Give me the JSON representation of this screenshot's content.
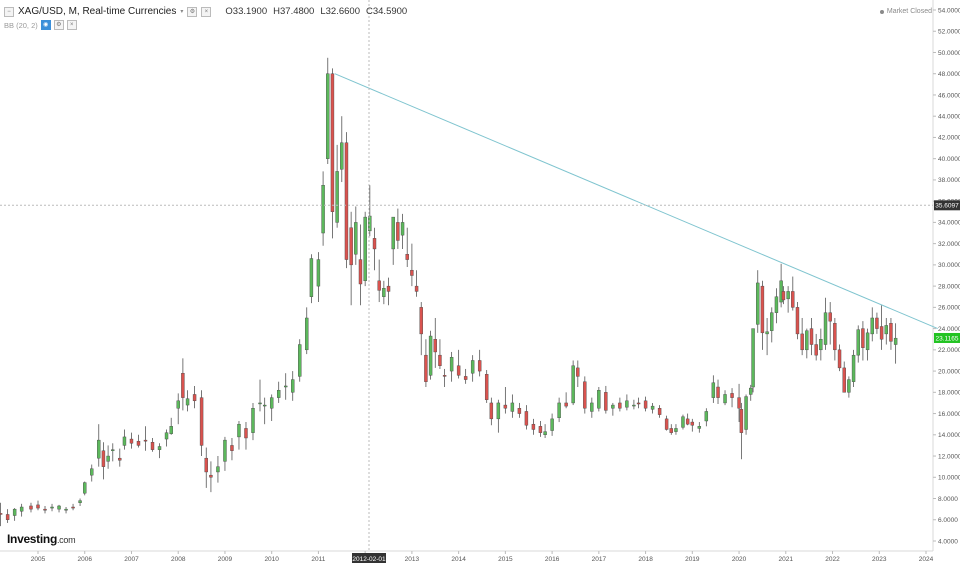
{
  "header": {
    "symbol": "XAG/USD, M, Real-time Currencies",
    "open_label": "O",
    "open": "33.1900",
    "high_label": "H",
    "high": "37.4800",
    "low_label": "L",
    "low": "32.6600",
    "close_label": "C",
    "close": "34.5900",
    "indicator": "BB (20, 2)",
    "market_status": "Market Closed"
  },
  "crosshair": {
    "x_label": "2012-02-01",
    "y_label": "35.6097"
  },
  "last_price": "23.1165",
  "logo": {
    "name": "Investing",
    "suffix": ".com"
  },
  "colors": {
    "up": "#5cb85c",
    "down": "#d9534f",
    "trendline": "#7fc4cf",
    "last_price_bg": "#22c322",
    "crosshair_bg": "#333333"
  },
  "chart_data": {
    "type": "candlestick",
    "xlabel": "",
    "ylabel": "",
    "x_ticks": [
      "2005",
      "2006",
      "2007",
      "2008",
      "2009",
      "2010",
      "2011",
      "2012",
      "2013",
      "2014",
      "2015",
      "2016",
      "2017",
      "2018",
      "2019",
      "2020",
      "2021",
      "2022",
      "2023",
      "2024"
    ],
    "y_ticks": [
      "4.0000",
      "6.0000",
      "8.0000",
      "10.0000",
      "12.0000",
      "14.0000",
      "16.0000",
      "18.0000",
      "20.0000",
      "22.0000",
      "24.0000",
      "26.0000",
      "28.0000",
      "30.0000",
      "32.0000",
      "34.0000",
      "36.0000",
      "38.0000",
      "40.0000",
      "42.0000",
      "44.0000",
      "46.0000",
      "48.0000",
      "50.0000",
      "52.0000",
      "54.0000"
    ],
    "ylim": [
      3,
      54.5
    ],
    "xlim": [
      2004.1,
      2024.25
    ],
    "candles": [
      [
        2004.1,
        6.4,
        8.0,
        6.0,
        8.0
      ],
      [
        2004.2,
        6.6,
        7.6,
        5.4,
        6.5
      ],
      [
        2004.35,
        6.5,
        7.0,
        5.7,
        6.0
      ],
      [
        2004.5,
        6.4,
        7.1,
        5.9,
        7.0
      ],
      [
        2004.65,
        6.8,
        7.5,
        6.3,
        7.2
      ],
      [
        2004.85,
        7.3,
        7.6,
        6.7,
        7.0
      ],
      [
        2005.0,
        7.4,
        7.8,
        6.9,
        7.1
      ],
      [
        2005.15,
        7.0,
        7.3,
        6.6,
        6.9
      ],
      [
        2005.3,
        7.1,
        7.5,
        6.8,
        7.2
      ],
      [
        2005.45,
        7.0,
        7.4,
        6.7,
        7.3
      ],
      [
        2005.6,
        6.9,
        7.2,
        6.6,
        7.0
      ],
      [
        2005.75,
        7.2,
        7.5,
        6.9,
        7.1
      ],
      [
        2005.9,
        7.6,
        8.0,
        7.3,
        7.8
      ],
      [
        2006.0,
        8.5,
        9.6,
        8.3,
        9.5
      ],
      [
        2006.15,
        10.2,
        11.2,
        9.6,
        10.8
      ],
      [
        2006.3,
        11.8,
        15.0,
        11.0,
        13.5
      ],
      [
        2006.4,
        12.5,
        13.3,
        9.8,
        11.0
      ],
      [
        2006.5,
        11.5,
        13.0,
        10.8,
        12.0
      ],
      [
        2006.6,
        12.5,
        13.2,
        11.5,
        12.6
      ],
      [
        2006.75,
        11.8,
        12.7,
        11.0,
        11.6
      ],
      [
        2006.85,
        13.0,
        14.5,
        12.6,
        13.8
      ],
      [
        2007.0,
        13.6,
        14.2,
        12.7,
        13.2
      ],
      [
        2007.15,
        13.4,
        14.0,
        12.8,
        13.0
      ],
      [
        2007.3,
        13.5,
        14.8,
        12.5,
        13.4
      ],
      [
        2007.45,
        13.3,
        13.7,
        12.4,
        12.6
      ],
      [
        2007.6,
        12.6,
        13.2,
        11.8,
        12.9
      ],
      [
        2007.75,
        13.6,
        14.5,
        12.9,
        14.2
      ],
      [
        2007.85,
        14.1,
        15.6,
        14.0,
        14.8
      ],
      [
        2008.0,
        16.5,
        17.9,
        15.0,
        17.2
      ],
      [
        2008.1,
        19.8,
        21.2,
        16.3,
        17.5
      ],
      [
        2008.2,
        16.8,
        18.2,
        16.2,
        17.4
      ],
      [
        2008.35,
        17.8,
        18.6,
        16.5,
        17.2
      ],
      [
        2008.5,
        17.5,
        18.2,
        12.0,
        13.0
      ],
      [
        2008.6,
        11.8,
        12.8,
        9.0,
        10.5
      ],
      [
        2008.7,
        10.2,
        11.5,
        8.6,
        10.0
      ],
      [
        2008.85,
        10.5,
        12.0,
        9.5,
        11.0
      ],
      [
        2009.0,
        11.5,
        13.8,
        10.6,
        13.5
      ],
      [
        2009.15,
        13.0,
        13.7,
        11.6,
        12.5
      ],
      [
        2009.3,
        13.8,
        15.3,
        12.6,
        15.0
      ],
      [
        2009.45,
        14.6,
        15.2,
        12.6,
        13.7
      ],
      [
        2009.6,
        14.2,
        17.0,
        13.5,
        16.5
      ],
      [
        2009.75,
        17.0,
        19.2,
        16.2,
        17.0
      ],
      [
        2009.85,
        16.8,
        17.5,
        15.0,
        16.8
      ],
      [
        2010.0,
        16.5,
        17.8,
        15.3,
        17.5
      ],
      [
        2010.15,
        17.5,
        19.0,
        17.0,
        18.2
      ],
      [
        2010.3,
        18.5,
        19.8,
        17.3,
        18.6
      ],
      [
        2010.45,
        18.0,
        20.0,
        17.2,
        19.2
      ],
      [
        2010.6,
        19.5,
        23.0,
        19.0,
        22.5
      ],
      [
        2010.75,
        22.0,
        26.0,
        21.6,
        25.0
      ],
      [
        2010.85,
        27.0,
        31.0,
        26.4,
        30.6
      ],
      [
        2011.0,
        28.0,
        31.2,
        26.5,
        30.5
      ],
      [
        2011.1,
        33.0,
        38.8,
        31.8,
        37.5
      ],
      [
        2011.2,
        40.0,
        49.5,
        39.5,
        48.0
      ],
      [
        2011.3,
        48.0,
        48.5,
        32.5,
        35.0
      ],
      [
        2011.4,
        34.0,
        41.3,
        33.5,
        38.8
      ],
      [
        2011.5,
        39.0,
        44.0,
        37.8,
        41.5
      ],
      [
        2011.6,
        41.5,
        42.5,
        29.7,
        30.5
      ],
      [
        2011.7,
        33.5,
        35.0,
        26.2,
        30.0
      ],
      [
        2011.8,
        31.0,
        35.5,
        30.0,
        34.0
      ],
      [
        2011.9,
        30.5,
        33.8,
        26.2,
        28.2
      ],
      [
        2012.0,
        28.5,
        35.0,
        28.0,
        34.5
      ],
      [
        2012.1,
        33.2,
        37.5,
        32.7,
        34.6
      ],
      [
        2012.2,
        32.5,
        33.5,
        29.5,
        31.5
      ],
      [
        2012.3,
        28.5,
        30.5,
        26.5,
        27.6
      ],
      [
        2012.4,
        27.0,
        28.5,
        26.3,
        27.8
      ],
      [
        2012.5,
        28.0,
        28.8,
        26.2,
        27.5
      ],
      [
        2012.6,
        31.5,
        34.5,
        30.0,
        34.5
      ],
      [
        2012.7,
        34.0,
        35.3,
        31.5,
        32.3
      ],
      [
        2012.8,
        32.8,
        34.8,
        31.5,
        34.0
      ],
      [
        2012.9,
        31.0,
        33.5,
        29.8,
        30.5
      ],
      [
        2013.0,
        29.5,
        32.0,
        28.0,
        29.0
      ],
      [
        2013.1,
        28.0,
        29.5,
        27.0,
        27.5
      ],
      [
        2013.2,
        26.0,
        26.5,
        21.5,
        23.5
      ],
      [
        2013.3,
        21.5,
        23.0,
        18.5,
        19.0
      ],
      [
        2013.4,
        19.6,
        23.8,
        19.2,
        23.3
      ],
      [
        2013.5,
        23.0,
        25.0,
        20.3,
        21.8
      ],
      [
        2013.6,
        21.5,
        23.0,
        20.2,
        20.5
      ],
      [
        2013.7,
        19.6,
        20.2,
        18.5,
        19.5
      ],
      [
        2013.85,
        20.0,
        21.8,
        19.0,
        21.3
      ],
      [
        2014.0,
        20.5,
        22.0,
        19.3,
        19.6
      ],
      [
        2014.15,
        19.5,
        20.2,
        18.8,
        19.2
      ],
      [
        2014.3,
        19.8,
        21.5,
        19.0,
        21.0
      ],
      [
        2014.45,
        21.0,
        22.0,
        19.5,
        20.0
      ],
      [
        2014.6,
        19.7,
        20.1,
        17.0,
        17.3
      ],
      [
        2014.7,
        17.0,
        17.5,
        14.9,
        15.5
      ],
      [
        2014.85,
        15.5,
        17.3,
        14.2,
        17.0
      ],
      [
        2015.0,
        16.8,
        18.5,
        16.0,
        16.5
      ],
      [
        2015.15,
        16.2,
        17.8,
        15.6,
        17.0
      ],
      [
        2015.3,
        16.5,
        17.0,
        15.6,
        16.0
      ],
      [
        2015.45,
        16.2,
        16.8,
        14.5,
        14.9
      ],
      [
        2015.6,
        15.0,
        15.5,
        14.0,
        14.5
      ],
      [
        2015.75,
        14.8,
        15.3,
        13.8,
        14.2
      ],
      [
        2015.85,
        14.0,
        15.0,
        13.7,
        14.3
      ],
      [
        2016.0,
        14.4,
        16.0,
        13.9,
        15.5
      ],
      [
        2016.15,
        15.6,
        17.5,
        15.2,
        17.0
      ],
      [
        2016.3,
        17.0,
        18.0,
        16.5,
        16.7
      ],
      [
        2016.45,
        17.0,
        21.0,
        16.8,
        20.5
      ],
      [
        2016.55,
        20.3,
        21.0,
        18.5,
        19.5
      ],
      [
        2016.7,
        19.0,
        19.5,
        16.0,
        16.5
      ],
      [
        2016.85,
        16.2,
        17.5,
        15.6,
        17.0
      ],
      [
        2017.0,
        16.5,
        18.5,
        16.2,
        18.2
      ],
      [
        2017.15,
        18.0,
        18.6,
        16.0,
        16.3
      ],
      [
        2017.3,
        16.5,
        17.0,
        15.8,
        16.8
      ],
      [
        2017.45,
        17.0,
        17.5,
        16.2,
        16.5
      ],
      [
        2017.6,
        16.6,
        17.8,
        16.3,
        17.2
      ],
      [
        2017.75,
        16.8,
        17.3,
        16.4,
        16.8
      ],
      [
        2017.85,
        17.0,
        17.5,
        16.5,
        16.9
      ],
      [
        2018.0,
        17.2,
        17.6,
        16.2,
        16.5
      ],
      [
        2018.15,
        16.4,
        17.0,
        16.0,
        16.7
      ],
      [
        2018.3,
        16.5,
        16.8,
        15.6,
        15.9
      ],
      [
        2018.45,
        15.5,
        15.8,
        14.4,
        14.5
      ],
      [
        2018.55,
        14.6,
        15.0,
        14.0,
        14.2
      ],
      [
        2018.65,
        14.3,
        15.0,
        14.0,
        14.6
      ],
      [
        2018.8,
        14.7,
        15.9,
        14.5,
        15.7
      ],
      [
        2018.9,
        15.5,
        16.0,
        14.9,
        15.0
      ],
      [
        2019.0,
        15.2,
        15.5,
        14.3,
        14.9
      ],
      [
        2019.15,
        14.6,
        15.2,
        14.2,
        14.8
      ],
      [
        2019.3,
        15.3,
        16.5,
        14.8,
        16.2
      ],
      [
        2019.45,
        17.5,
        19.6,
        17.0,
        18.9
      ],
      [
        2019.55,
        18.5,
        19.2,
        16.9,
        17.5
      ],
      [
        2019.7,
        17.0,
        18.2,
        16.8,
        17.8
      ],
      [
        2019.85,
        17.9,
        18.4,
        16.6,
        17.5
      ],
      [
        2020.0,
        17.5,
        18.8,
        15.2,
        16.5
      ],
      [
        2020.05,
        16.4,
        17.0,
        11.7,
        14.2
      ],
      [
        2020.15,
        14.5,
        17.8,
        14.0,
        17.6
      ],
      [
        2020.25,
        17.8,
        18.7,
        17.2,
        18.4
      ],
      [
        2020.3,
        18.5,
        24.0,
        18.0,
        24.0
      ],
      [
        2020.4,
        24.4,
        29.5,
        23.6,
        28.3
      ],
      [
        2020.5,
        28.0,
        28.5,
        22.0,
        23.6
      ],
      [
        2020.6,
        23.5,
        25.0,
        21.5,
        23.7
      ],
      [
        2020.7,
        23.8,
        26.0,
        22.7,
        25.5
      ],
      [
        2020.8,
        25.5,
        27.8,
        24.5,
        27.0
      ],
      [
        2020.9,
        26.5,
        30.1,
        26.0,
        28.5
      ],
      [
        2020.95,
        27.5,
        28.0,
        26.3,
        26.7
      ],
      [
        2021.05,
        26.8,
        28.0,
        25.5,
        27.5
      ],
      [
        2021.15,
        27.5,
        28.9,
        25.7,
        26.0
      ],
      [
        2021.25,
        26.0,
        26.5,
        23.0,
        23.5
      ],
      [
        2021.35,
        23.5,
        25.0,
        21.5,
        22.0
      ],
      [
        2021.45,
        22.0,
        24.0,
        21.2,
        23.8
      ],
      [
        2021.55,
        24.0,
        25.0,
        21.5,
        22.5
      ],
      [
        2021.65,
        22.5,
        23.5,
        21.0,
        21.5
      ],
      [
        2021.75,
        22.0,
        24.0,
        21.0,
        23.0
      ],
      [
        2021.85,
        22.5,
        26.9,
        22.0,
        25.5
      ],
      [
        2021.95,
        25.5,
        26.5,
        22.5,
        24.7
      ],
      [
        2022.05,
        24.5,
        25.0,
        21.0,
        22.0
      ],
      [
        2022.15,
        22.0,
        22.5,
        20.0,
        20.3
      ],
      [
        2022.25,
        20.3,
        20.9,
        18.0,
        18.0
      ],
      [
        2022.35,
        18.0,
        19.5,
        17.5,
        19.2
      ],
      [
        2022.45,
        19.0,
        22.0,
        18.5,
        21.5
      ],
      [
        2022.55,
        21.5,
        24.3,
        20.8,
        23.9
      ],
      [
        2022.65,
        24.0,
        24.7,
        21.0,
        22.2
      ],
      [
        2022.75,
        22.0,
        24.0,
        21.0,
        23.6
      ],
      [
        2022.85,
        23.5,
        26.0,
        22.8,
        25.0
      ],
      [
        2022.95,
        25.0,
        25.5,
        23.5,
        24.0
      ],
      [
        2023.05,
        24.2,
        26.2,
        22.0,
        23.0
      ],
      [
        2023.15,
        23.5,
        25.0,
        22.5,
        24.3
      ],
      [
        2023.25,
        24.5,
        25.0,
        22.0,
        22.8
      ],
      [
        2023.35,
        22.5,
        24.5,
        20.7,
        23.1
      ]
    ],
    "trendline": {
      "from": [
        2011.35,
        48.0
      ],
      "to": [
        2024.25,
        24.0
      ]
    }
  }
}
